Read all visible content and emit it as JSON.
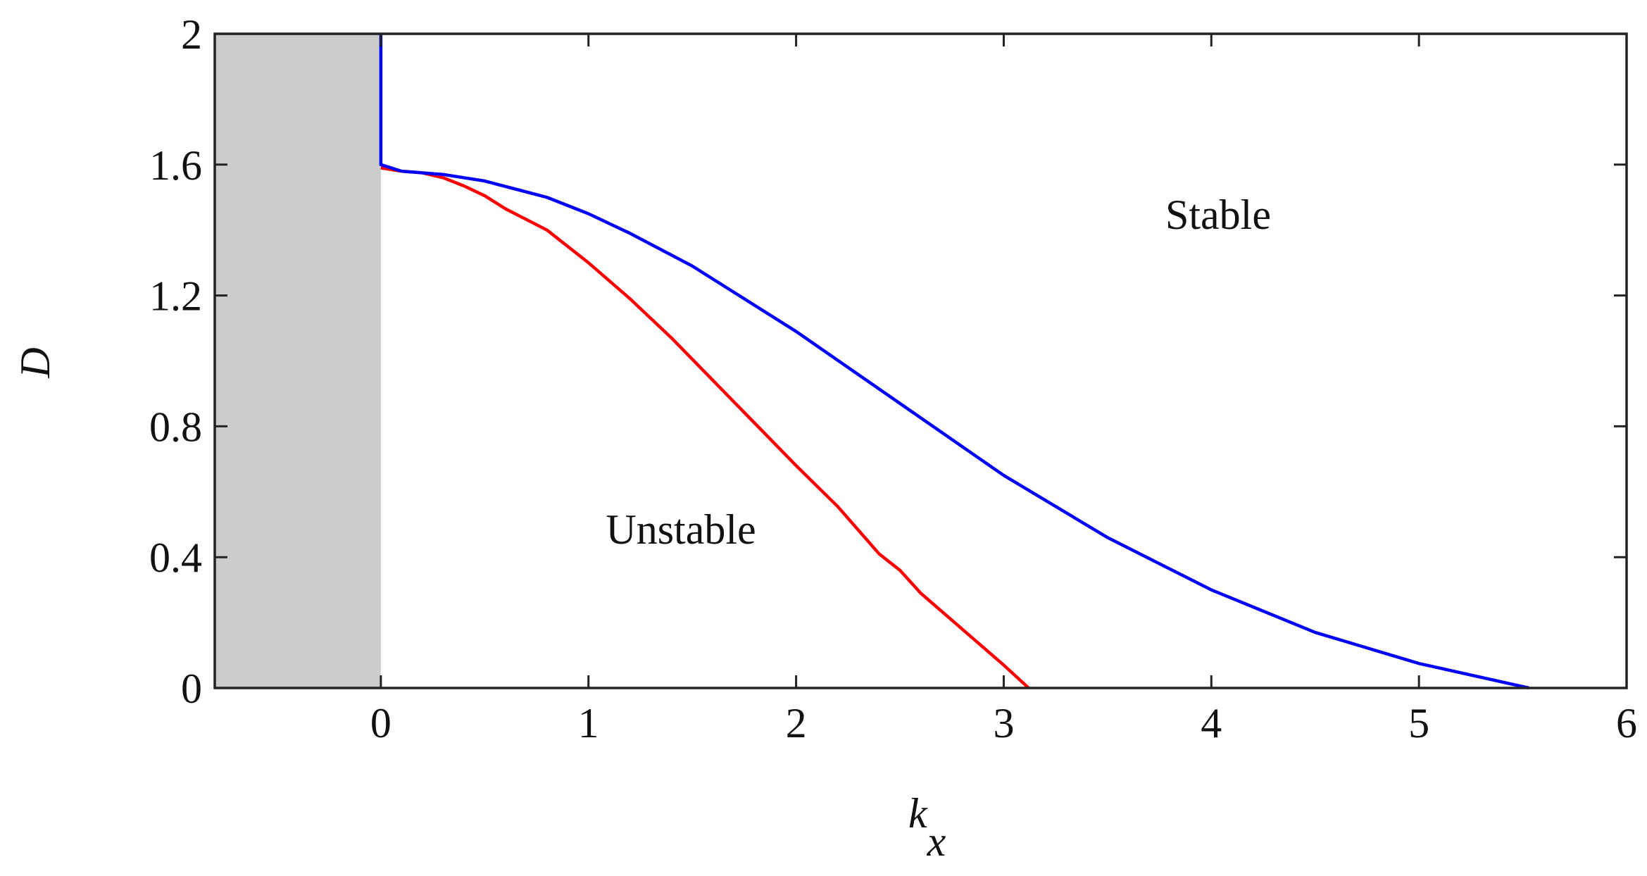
{
  "chart_data": {
    "type": "line",
    "xlabel": "k",
    "xlabel_sub": "x",
    "ylabel": "D",
    "xlim": [
      -0.8,
      6
    ],
    "ylim": [
      0,
      2
    ],
    "xticks": [
      0,
      1,
      2,
      3,
      4,
      5,
      6
    ],
    "yticks": [
      0,
      0.4,
      0.8,
      1.2,
      1.6,
      2
    ],
    "shaded_x": [
      -0.8,
      0
    ],
    "shade_color": "#cccccc",
    "annotations": [
      "Stable",
      "Unstable"
    ],
    "series": [
      {
        "color": "#ff0000",
        "x": [
          0,
          0.1,
          0.2,
          0.3,
          0.4,
          0.5,
          0.6,
          0.8,
          1.0,
          1.2,
          1.4,
          1.6,
          1.8,
          2.0,
          2.2,
          2.4,
          2.5,
          2.6,
          2.8,
          3.0,
          3.12
        ],
        "values": [
          1.59,
          1.58,
          1.575,
          1.56,
          1.535,
          1.505,
          1.465,
          1.4,
          1.3,
          1.19,
          1.07,
          0.94,
          0.81,
          0.68,
          0.555,
          0.41,
          0.36,
          0.29,
          0.18,
          0.07,
          0
        ]
      },
      {
        "color": "#0000ff",
        "x": [
          0,
          0,
          0.1,
          0.3,
          0.5,
          0.8,
          1.0,
          1.2,
          1.5,
          2.0,
          2.5,
          3.0,
          3.5,
          4.0,
          4.5,
          5.0,
          5.53
        ],
        "values": [
          2,
          1.6,
          1.58,
          1.57,
          1.55,
          1.5,
          1.45,
          1.39,
          1.29,
          1.09,
          0.87,
          0.65,
          0.46,
          0.3,
          0.17,
          0.075,
          0
        ]
      }
    ]
  }
}
